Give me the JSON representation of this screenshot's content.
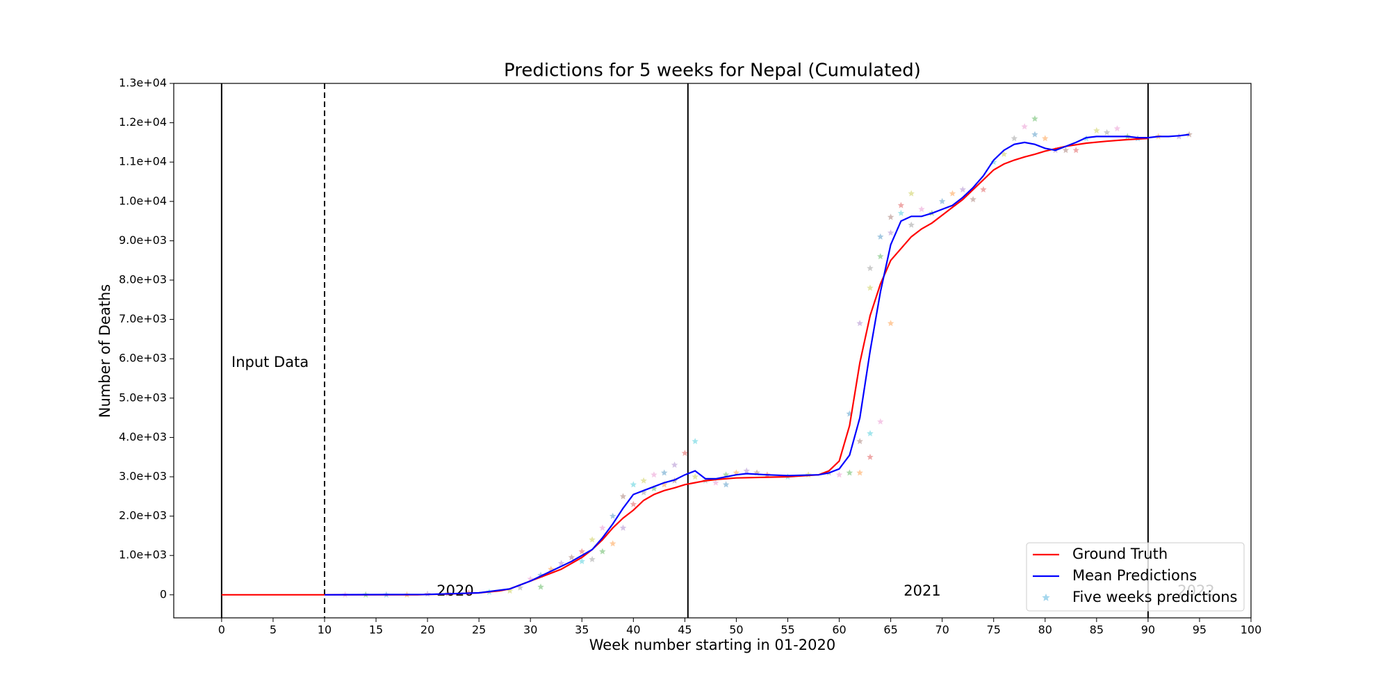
{
  "chart_data": {
    "type": "line",
    "title": "Predictions for 5 weeks for Nepal (Cumulated)",
    "x_label": "Week number starting in 01-2020",
    "y_label": "Number of Deaths",
    "xlim": [
      -4.65,
      100
    ],
    "ylim": [
      -586,
      13000
    ],
    "xticks": [
      0,
      5,
      10,
      15,
      20,
      25,
      30,
      35,
      40,
      45,
      50,
      55,
      60,
      65,
      70,
      75,
      80,
      85,
      90,
      95,
      100
    ],
    "yticks": [
      0,
      {
        "value": 1000,
        "label": "1.0e+03"
      },
      {
        "value": 2000,
        "label": "2.0e+03"
      },
      {
        "value": 3000,
        "label": "3.0e+03"
      },
      {
        "value": 4000,
        "label": "4.0e+03"
      },
      {
        "value": 5000,
        "label": "5.0e+03"
      },
      {
        "value": 6000,
        "label": "6.0e+03"
      },
      {
        "value": 7000,
        "label": "7.0e+03"
      },
      {
        "value": 8000,
        "label": "8.0e+03"
      },
      {
        "value": 9000,
        "label": "9.0e+03"
      },
      {
        "value": 10000,
        "label": "1.0e+04"
      },
      {
        "value": 11000,
        "label": "1.1e+04"
      },
      {
        "value": 12000,
        "label": "1.2e+04"
      },
      {
        "value": 13000,
        "label": "1.3e+04"
      }
    ],
    "vlines": [
      0,
      10,
      45.3,
      90
    ],
    "vline_styles": [
      "solid",
      "dashed",
      "solid",
      "solid"
    ],
    "annotations": [
      "Input Data",
      "2020",
      "2021",
      "2022"
    ],
    "legend": "lower right",
    "series": [
      {
        "name": "Ground Truth",
        "color": "#ff0000",
        "type": "line",
        "x": [
          0,
          19,
          20,
          22,
          25,
          27,
          28,
          29,
          30,
          31,
          32,
          33,
          34,
          35,
          36,
          37,
          38,
          39,
          40,
          41,
          42,
          43,
          44,
          45,
          46,
          47,
          48,
          50,
          55,
          58,
          59,
          60,
          61,
          62,
          63,
          64,
          65,
          66,
          67,
          68,
          69,
          70,
          71,
          72,
          73,
          74,
          75,
          76,
          77,
          78,
          79,
          80,
          82,
          84,
          86,
          88,
          90
        ],
        "values": [
          0,
          0,
          10,
          20,
          50,
          100,
          150,
          250,
          350,
          450,
          550,
          650,
          800,
          950,
          1150,
          1400,
          1700,
          1950,
          2150,
          2400,
          2550,
          2650,
          2720,
          2800,
          2850,
          2900,
          2930,
          2970,
          3000,
          3050,
          3150,
          3400,
          4300,
          5900,
          7100,
          7900,
          8500,
          8800,
          9100,
          9300,
          9450,
          9650,
          9850,
          10050,
          10300,
          10550,
          10800,
          10950,
          11050,
          11130,
          11200,
          11280,
          11400,
          11480,
          11530,
          11570,
          11600
        ]
      },
      {
        "name": "Mean Predictions",
        "color": "#0000ff",
        "type": "line",
        "x": [
          10,
          20,
          25,
          28,
          30,
          32,
          34,
          36,
          37,
          38,
          39,
          40,
          41,
          42,
          43,
          44,
          45,
          46,
          47,
          48,
          50,
          51,
          53,
          55,
          58,
          59,
          60,
          61,
          62,
          63,
          64,
          65,
          66,
          67,
          68,
          69,
          70,
          71,
          72,
          73,
          74,
          75,
          76,
          77,
          78,
          79,
          80,
          81,
          82,
          83,
          84,
          85,
          86,
          87,
          88,
          89,
          90,
          91,
          92,
          93,
          94
        ],
        "values": [
          0,
          10,
          50,
          150,
          350,
          600,
          850,
          1150,
          1450,
          1800,
          2200,
          2550,
          2650,
          2750,
          2850,
          2920,
          3050,
          3150,
          2950,
          2950,
          3050,
          3080,
          3050,
          3030,
          3050,
          3100,
          3200,
          3550,
          4500,
          6200,
          7700,
          8900,
          9500,
          9620,
          9620,
          9700,
          9800,
          9900,
          10100,
          10350,
          10650,
          11050,
          11300,
          11450,
          11500,
          11450,
          11350,
          11300,
          11400,
          11500,
          11620,
          11650,
          11650,
          11650,
          11650,
          11620,
          11620,
          11650,
          11650,
          11670,
          11700
        ]
      },
      {
        "name": "Five weeks predictions",
        "color": "#7fc6e6",
        "type": "scatter",
        "palette": [
          "#e377c2",
          "#2ca02c",
          "#1f77b4",
          "#ff7f0e",
          "#9467bd",
          "#8c564b",
          "#d62728",
          "#17becf",
          "#bcbd22",
          "#7f7f7f"
        ],
        "x": [
          12,
          14,
          16,
          18,
          20,
          22,
          24,
          26,
          28,
          29,
          30,
          31,
          31,
          32,
          33,
          34,
          35,
          35,
          36,
          36,
          37,
          37,
          38,
          38,
          39,
          39,
          40,
          40,
          41,
          41,
          42,
          42,
          43,
          43,
          44,
          44,
          45,
          46,
          46,
          47,
          48,
          49,
          49,
          50,
          51,
          52,
          53,
          55,
          57,
          59,
          60,
          61,
          61,
          62,
          62,
          62,
          63,
          63,
          63,
          63,
          64,
          64,
          64,
          65,
          65,
          65,
          66,
          66,
          67,
          67,
          68,
          69,
          70,
          71,
          72,
          73,
          74,
          75,
          76,
          77,
          78,
          79,
          79,
          80,
          81,
          82,
          83,
          84,
          85,
          86,
          87,
          88,
          89,
          91,
          93,
          94
        ],
        "values": [
          0,
          0,
          0,
          0,
          20,
          30,
          50,
          70,
          100,
          180,
          400,
          200,
          500,
          650,
          800,
          950,
          1100,
          850,
          1400,
          900,
          1700,
          1100,
          2000,
          1300,
          1700,
          2500,
          2300,
          2800,
          2900,
          2600,
          3050,
          2700,
          3100,
          2800,
          3300,
          2900,
          3600,
          3900,
          3000,
          2900,
          2850,
          3050,
          2800,
          3100,
          3150,
          3100,
          3050,
          3000,
          3050,
          3100,
          3050,
          3100,
          4600,
          3100,
          6900,
          3900,
          3500,
          4100,
          7800,
          8300,
          4400,
          8600,
          9100,
          6900,
          9200,
          9600,
          9900,
          9700,
          10200,
          9400,
          9800,
          9700,
          10000,
          10200,
          10300,
          10050,
          10300,
          11000,
          11200,
          11600,
          11900,
          12100,
          11700,
          11600,
          11300,
          11300,
          11300,
          11600,
          11800,
          11750,
          11850,
          11650,
          11600,
          11650,
          11650,
          11700
        ]
      }
    ]
  }
}
